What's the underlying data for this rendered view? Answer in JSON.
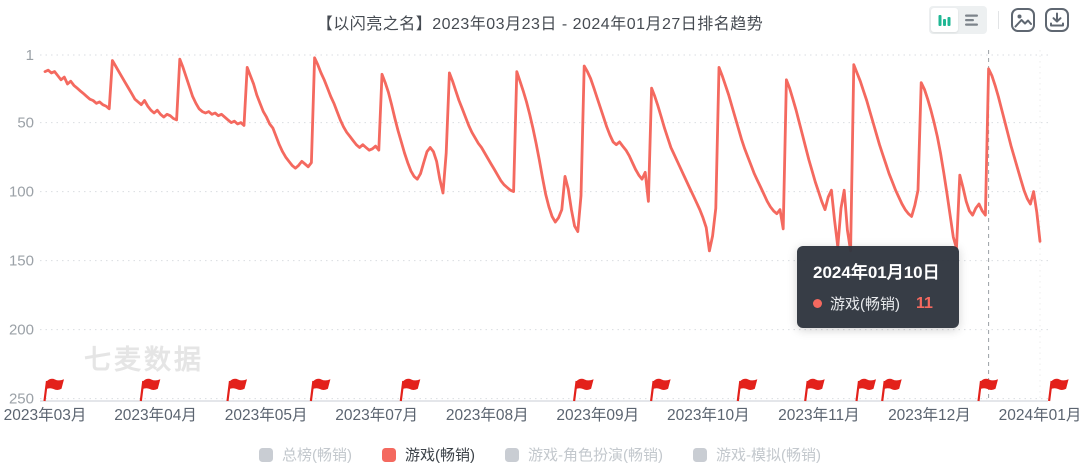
{
  "header": {
    "title": "【以闪亮之名】2023年03月23日 - 2024年01月27日排名趋势"
  },
  "watermark": "七麦数据",
  "tooltip": {
    "date": "2024年01月10日",
    "series": "游戏(畅销)",
    "value": "11",
    "dot_color": "#f4695f"
  },
  "legend": [
    {
      "label": "总榜(畅销)",
      "color": "#c9cdd3",
      "active": false
    },
    {
      "label": "游戏(畅销)",
      "color": "#f4695f",
      "active": true
    },
    {
      "label": "游戏-角色扮演(畅销)",
      "color": "#c9cdd3",
      "active": false
    },
    {
      "label": "游戏-模拟(畅销)",
      "color": "#c9cdd3",
      "active": false
    }
  ],
  "colors": {
    "line": "#f4695f",
    "flag": "#e3211b",
    "grid": "#dadde1",
    "axis": "#c9ced4"
  },
  "chart_data": {
    "type": "line",
    "title": "【以闪亮之名】2023年03月23日 - 2024年01月27日排名趋势",
    "x_start_date": "2023-03-23",
    "x_end_date": "2024-01-27",
    "x_tick_labels": [
      "2023年03月",
      "2023年04月",
      "2023年05月",
      "2023年07月",
      "2023年08月",
      "2023年09月",
      "2023年10月",
      "2023年11月",
      "2023年12月",
      "2024年01月"
    ],
    "y_ticks": [
      1,
      50,
      100,
      150,
      200,
      250
    ],
    "y_axis_inverted": true,
    "ylim": [
      1,
      250
    ],
    "grid": "horizontal-dashed",
    "legend_position": "bottom",
    "crosshair_day": 294,
    "flag_days": [
      0,
      30,
      57,
      83,
      111,
      165,
      189,
      216,
      237,
      253,
      261,
      291,
      313
    ],
    "series": [
      {
        "name": "游戏(畅销)",
        "color": "#f4695f",
        "daily_ranks": [
          13,
          12,
          14,
          13,
          16,
          19,
          17,
          22,
          20,
          23,
          25,
          27,
          29,
          31,
          33,
          34,
          36,
          35,
          37,
          38,
          40,
          5,
          9,
          13,
          17,
          21,
          25,
          29,
          33,
          35,
          37,
          34,
          38,
          41,
          43,
          41,
          44,
          46,
          44,
          45,
          47,
          48,
          4,
          10,
          17,
          24,
          31,
          36,
          40,
          42,
          43,
          42,
          44,
          43,
          45,
          44,
          46,
          48,
          50,
          49,
          51,
          50,
          52,
          10,
          16,
          22,
          30,
          36,
          42,
          46,
          51,
          54,
          60,
          66,
          71,
          75,
          78,
          81,
          83,
          81,
          78,
          80,
          82,
          79,
          3,
          8,
          14,
          19,
          25,
          31,
          36,
          42,
          48,
          53,
          57,
          60,
          63,
          66,
          68,
          66,
          68,
          70,
          69,
          67,
          70,
          15,
          21,
          28,
          37,
          47,
          56,
          64,
          72,
          79,
          85,
          89,
          91,
          87,
          79,
          71,
          68,
          71,
          78,
          91,
          101,
          72,
          14,
          20,
          27,
          34,
          40,
          46,
          52,
          57,
          61,
          65,
          68,
          72,
          76,
          80,
          84,
          88,
          92,
          95,
          97,
          99,
          100,
          13,
          20,
          27,
          35,
          44,
          54,
          65,
          77,
          90,
          102,
          111,
          118,
          122,
          119,
          113,
          89,
          98,
          113,
          125,
          129,
          103,
          9,
          13,
          18,
          25,
          32,
          39,
          46,
          53,
          59,
          64,
          66,
          64,
          67,
          70,
          74,
          79,
          84,
          88,
          91,
          86,
          107,
          25,
          31,
          38,
          46,
          54,
          61,
          68,
          73,
          78,
          83,
          88,
          93,
          98,
          103,
          108,
          113,
          119,
          126,
          143,
          132,
          112,
          10,
          16,
          23,
          30,
          38,
          46,
          54,
          62,
          69,
          75,
          81,
          87,
          92,
          97,
          102,
          107,
          111,
          114,
          116,
          113,
          127,
          19,
          25,
          33,
          41,
          50,
          59,
          68,
          77,
          85,
          93,
          100,
          107,
          113,
          104,
          99,
          121,
          140,
          112,
          99,
          128,
          143,
          8,
          14,
          20,
          27,
          34,
          42,
          50,
          58,
          66,
          73,
          80,
          87,
          93,
          99,
          104,
          109,
          113,
          116,
          118,
          110,
          99,
          21,
          26,
          33,
          41,
          50,
          60,
          72,
          86,
          101,
          117,
          133,
          141,
          88,
          97,
          107,
          114,
          117,
          112,
          109,
          114,
          117,
          11,
          16,
          23,
          31,
          40,
          49,
          58,
          67,
          75,
          83,
          91,
          99,
          105,
          109,
          100,
          115,
          136
        ]
      }
    ]
  }
}
